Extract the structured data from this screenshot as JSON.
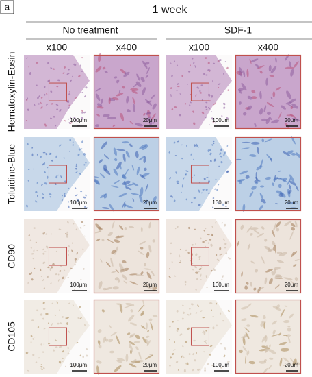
{
  "header": {
    "panel_label": "a",
    "title": "1 week"
  },
  "groups": [
    {
      "label": "No treatment"
    },
    {
      "label": "SDF-1"
    }
  ],
  "columns": [
    "x100",
    "x400",
    "x100",
    "x400"
  ],
  "rows": [
    {
      "label": "Hematoxylin-Eosin",
      "scale_bars": [
        "100μm",
        "20μm",
        "100μm",
        "20μm"
      ]
    },
    {
      "label": "Toluidine-Blue",
      "scale_bars": [
        "100μm",
        "20μm",
        "100μm",
        "20μm"
      ]
    },
    {
      "label": "CD90",
      "scale_bars": [
        "100μm",
        "20μm",
        "100μm",
        "20μm"
      ]
    },
    {
      "label": "CD105",
      "scale_bars": [
        "100μm",
        "20μm",
        "100μm",
        "20μm"
      ]
    }
  ]
}
